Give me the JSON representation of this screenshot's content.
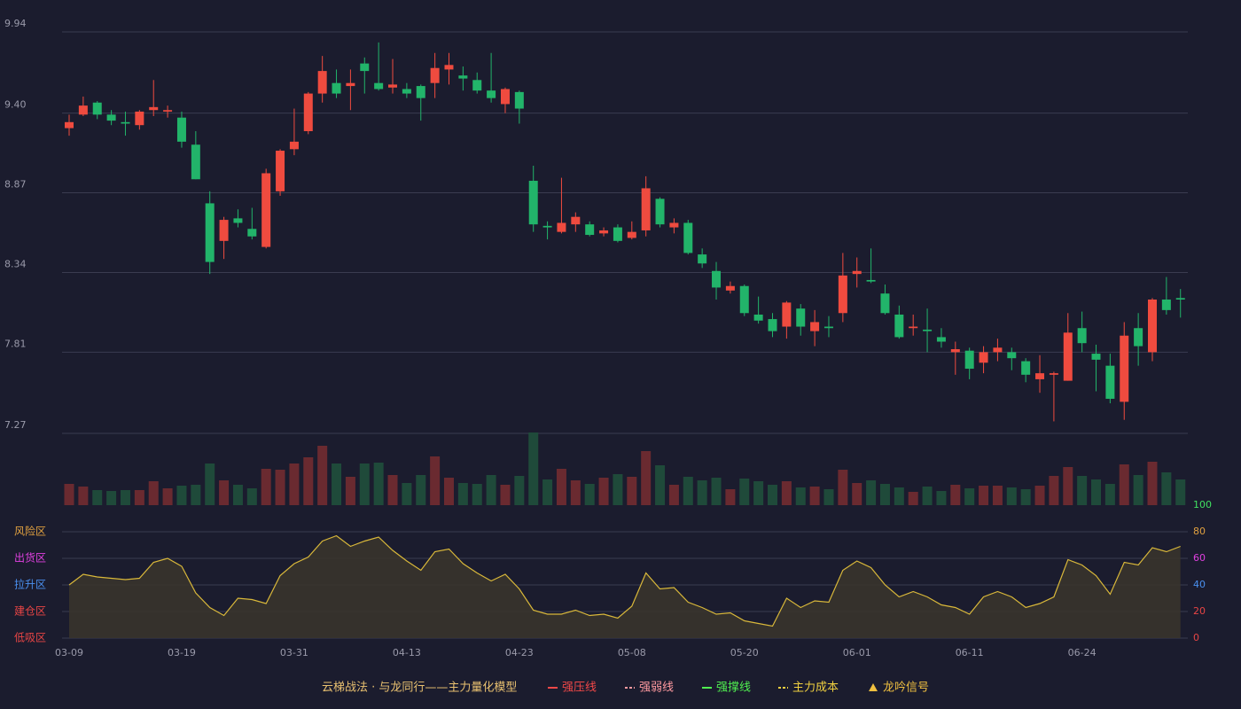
{
  "chart_data": [
    {
      "type": "candlestick",
      "up_color": "#ef4b3f",
      "down_color": "#22b46a",
      "grid": true,
      "ylim": [
        7.27,
        9.94
      ],
      "yticks": [
        {
          "value": 7.27,
          "label": "7.27"
        },
        {
          "value": 7.81,
          "label": "7.81"
        },
        {
          "value": 8.34,
          "label": "8.34"
        },
        {
          "value": 8.87,
          "label": "8.87"
        },
        {
          "value": 9.4,
          "label": "9.40"
        },
        {
          "value": 9.94,
          "label": "9.94"
        }
      ],
      "open": [
        9.3,
        9.39,
        9.47,
        9.39,
        9.34,
        9.32,
        9.42,
        9.41,
        9.37,
        9.19,
        8.8,
        8.55,
        8.7,
        8.63,
        8.51,
        8.88,
        9.16,
        9.28,
        9.53,
        9.6,
        9.58,
        9.73,
        9.6,
        9.57,
        9.56,
        9.58,
        9.6,
        9.69,
        9.65,
        9.62,
        9.55,
        9.46,
        9.54,
        8.95,
        8.65,
        8.61,
        8.66,
        8.66,
        8.6,
        8.64,
        8.57,
        8.62,
        8.83,
        8.64,
        8.67,
        8.46,
        8.35,
        8.22,
        8.25,
        8.06,
        8.03,
        7.98,
        8.1,
        7.95,
        7.98,
        8.07,
        8.33,
        8.29,
        8.2,
        8.06,
        7.97,
        7.96,
        7.91,
        7.81,
        7.82,
        7.74,
        7.81,
        7.81,
        7.75,
        7.63,
        7.66,
        7.62,
        7.97,
        7.8,
        7.72,
        7.48,
        7.97,
        7.81,
        8.16,
        8.17
      ],
      "high": [
        9.39,
        9.51,
        9.48,
        9.42,
        9.41,
        9.42,
        9.62,
        9.45,
        9.41,
        9.28,
        8.88,
        8.71,
        8.76,
        8.77,
        9.03,
        9.16,
        9.43,
        9.54,
        9.78,
        9.69,
        9.69,
        9.77,
        9.87,
        9.76,
        9.6,
        9.59,
        9.8,
        9.8,
        9.71,
        9.67,
        9.8,
        9.57,
        9.55,
        9.05,
        8.68,
        8.97,
        8.74,
        8.68,
        8.64,
        8.66,
        8.68,
        8.98,
        8.84,
        8.7,
        8.69,
        8.5,
        8.41,
        8.28,
        8.26,
        8.18,
        8.07,
        8.15,
        8.13,
        8.09,
        8.05,
        8.47,
        8.44,
        8.5,
        8.26,
        8.12,
        8.06,
        8.1,
        7.97,
        7.88,
        7.84,
        7.85,
        7.9,
        7.84,
        7.77,
        7.79,
        7.68,
        8.07,
        8.08,
        7.86,
        7.8,
        8.01,
        8.07,
        8.17,
        8.31,
        8.23
      ],
      "low": [
        9.25,
        9.38,
        9.36,
        9.32,
        9.25,
        9.29,
        9.38,
        9.37,
        9.17,
        8.96,
        8.33,
        8.43,
        8.64,
        8.56,
        8.5,
        8.85,
        9.12,
        9.26,
        9.47,
        9.5,
        9.42,
        9.53,
        9.55,
        9.53,
        9.5,
        9.35,
        9.5,
        9.59,
        9.55,
        9.53,
        9.47,
        9.4,
        9.33,
        8.61,
        8.56,
        8.6,
        8.61,
        8.58,
        8.58,
        8.54,
        8.56,
        8.58,
        8.64,
        8.6,
        8.46,
        8.37,
        8.16,
        8.2,
        8.05,
        8.0,
        7.91,
        7.9,
        7.92,
        7.85,
        7.91,
        8.01,
        8.24,
        8.27,
        8.06,
        7.9,
        7.92,
        7.81,
        7.84,
        7.66,
        7.63,
        7.67,
        7.75,
        7.69,
        7.61,
        7.54,
        7.35,
        7.62,
        7.81,
        7.55,
        7.47,
        7.36,
        7.72,
        7.75,
        8.06,
        8.04
      ],
      "close": [
        9.34,
        9.45,
        9.39,
        9.35,
        9.33,
        9.41,
        9.44,
        9.42,
        9.21,
        8.96,
        8.41,
        8.69,
        8.67,
        8.58,
        9.0,
        9.15,
        9.21,
        9.53,
        9.68,
        9.53,
        9.6,
        9.68,
        9.56,
        9.59,
        9.53,
        9.5,
        9.7,
        9.72,
        9.63,
        9.55,
        9.5,
        9.56,
        9.43,
        8.66,
        8.64,
        8.67,
        8.71,
        8.59,
        8.62,
        8.55,
        8.61,
        8.9,
        8.66,
        8.67,
        8.47,
        8.4,
        8.24,
        8.25,
        8.07,
        8.02,
        7.95,
        8.14,
        7.98,
        8.01,
        7.97,
        8.32,
        8.35,
        8.28,
        8.07,
        7.91,
        7.98,
        7.95,
        7.88,
        7.83,
        7.7,
        7.81,
        7.84,
        7.77,
        7.66,
        7.67,
        7.67,
        7.94,
        7.87,
        7.76,
        7.5,
        7.92,
        7.85,
        8.16,
        8.09,
        8.16
      ]
    },
    {
      "type": "volume",
      "values": [
        24,
        21,
        17,
        16,
        17,
        17,
        27,
        19,
        22,
        23,
        47,
        28,
        23,
        19,
        41,
        40,
        47,
        54,
        67,
        47,
        32,
        47,
        48,
        34,
        25,
        34,
        55,
        31,
        25,
        24,
        34,
        23,
        33,
        82,
        29,
        41,
        28,
        24,
        31,
        35,
        32,
        61,
        45,
        23,
        32,
        28,
        31,
        18,
        30,
        27,
        23,
        27,
        20,
        21,
        18,
        40,
        25,
        28,
        24,
        20,
        15,
        21,
        16,
        23,
        19,
        22,
        22,
        20,
        18,
        22,
        33,
        43,
        33,
        29,
        24,
        46,
        34,
        49,
        37,
        29
      ]
    },
    {
      "type": "area",
      "line_color": "#d9b83a",
      "fill_color": "#3a352c",
      "grid": true,
      "ylim": [
        0,
        100
      ],
      "yticks": [
        0,
        20,
        40,
        60,
        80,
        100
      ],
      "ytick_colors": [
        "#e84545",
        "#e84545",
        "#4a90f0",
        "#e040e0",
        "#e0a040",
        "#40e060"
      ],
      "zones": [
        {
          "label": "低吸区",
          "value": 0,
          "color": "#e84545"
        },
        {
          "label": "建仓区",
          "value": 20,
          "color": "#e84545"
        },
        {
          "label": "拉升区",
          "value": 40,
          "color": "#4a90f0"
        },
        {
          "label": "出货区",
          "value": 60,
          "color": "#e040e0"
        },
        {
          "label": "风险区",
          "value": 80,
          "color": "#e0a040"
        }
      ],
      "categories": [
        "03-09",
        null,
        null,
        null,
        null,
        null,
        null,
        null,
        "03-19",
        null,
        null,
        null,
        null,
        null,
        null,
        null,
        "03-31",
        null,
        null,
        null,
        null,
        null,
        null,
        null,
        "04-13",
        null,
        null,
        null,
        null,
        null,
        null,
        null,
        "04-23",
        null,
        null,
        null,
        null,
        null,
        null,
        null,
        "05-08",
        null,
        null,
        null,
        null,
        null,
        null,
        null,
        "05-20",
        null,
        null,
        null,
        null,
        null,
        null,
        null,
        "06-01",
        null,
        null,
        null,
        null,
        null,
        null,
        null,
        "06-11",
        null,
        null,
        null,
        null,
        null,
        null,
        null,
        "06-24",
        null,
        null,
        null,
        null,
        null,
        null,
        null
      ],
      "values": [
        40,
        48,
        46,
        45,
        44,
        45,
        57,
        60,
        54,
        34,
        23,
        17,
        30,
        29,
        26,
        47,
        56,
        61,
        73,
        77,
        69,
        73,
        76,
        66,
        58,
        51,
        65,
        67,
        56,
        49,
        43,
        48,
        37,
        21,
        18,
        18,
        21,
        17,
        18,
        15,
        24,
        49,
        37,
        38,
        27,
        23,
        18,
        19,
        13,
        11,
        9,
        30,
        23,
        28,
        27,
        51,
        58,
        53,
        40,
        31,
        35,
        31,
        25,
        23,
        18,
        31,
        35,
        31,
        23,
        26,
        31,
        59,
        55,
        47,
        33,
        57,
        55,
        68,
        65,
        69
      ]
    }
  ],
  "legend": {
    "title": "云梯战法 · 与龙同行——主力量化模型",
    "title_color": "#e8c070",
    "items": [
      {
        "name": "强压线",
        "color": "#f04848",
        "marker": "solid"
      },
      {
        "name": "强弱线",
        "color": "#ff9aa0",
        "marker": "dashed"
      },
      {
        "name": "强撑线",
        "color": "#50f050",
        "marker": "solid"
      },
      {
        "name": "主力成本",
        "color": "#f0d040",
        "marker": "dashed"
      },
      {
        "name": "龙吟信号",
        "color": "#f0c040",
        "marker": "triangle"
      }
    ]
  }
}
